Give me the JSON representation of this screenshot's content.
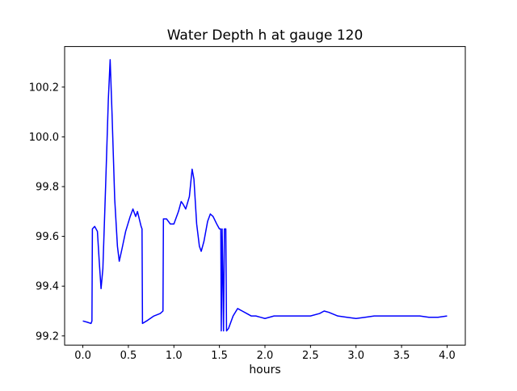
{
  "chart_data": {
    "type": "line",
    "title": "Water Depth h at gauge 120",
    "xlabel": "hours",
    "ylabel": "",
    "grid": false,
    "legend": "none",
    "background_color": "#ffffff",
    "axis_color": "#000000",
    "xlim": [
      -0.2,
      4.2
    ],
    "ylim": [
      99.163,
      100.363
    ],
    "xticks": [
      0.0,
      0.5,
      1.0,
      1.5,
      2.0,
      2.5,
      3.0,
      3.5,
      4.0
    ],
    "xtick_labels": [
      "0.0",
      "0.5",
      "1.0",
      "1.5",
      "2.0",
      "2.5",
      "3.0",
      "3.5",
      "4.0"
    ],
    "yticks": [
      99.2,
      99.4,
      99.6,
      99.8,
      100.0,
      100.2
    ],
    "ytick_labels": [
      "99.2",
      "99.4",
      "99.6",
      "99.8",
      "100.0",
      "100.2"
    ],
    "series": [
      {
        "name": "water-depth-h",
        "color": "#0000ff",
        "line_width": 1.5,
        "x": [
          0.0,
          0.05,
          0.09,
          0.1,
          0.105,
          0.13,
          0.16,
          0.18,
          0.2,
          0.22,
          0.25,
          0.28,
          0.3,
          0.32,
          0.35,
          0.38,
          0.4,
          0.43,
          0.47,
          0.52,
          0.55,
          0.58,
          0.6,
          0.62,
          0.64,
          0.65,
          0.655,
          0.7,
          0.78,
          0.85,
          0.88,
          0.885,
          0.92,
          0.96,
          1.0,
          1.05,
          1.08,
          1.1,
          1.13,
          1.17,
          1.2,
          1.22,
          1.25,
          1.28,
          1.3,
          1.33,
          1.37,
          1.4,
          1.43,
          1.47,
          1.5,
          1.515,
          1.52,
          1.53,
          1.545,
          1.555,
          1.57,
          1.578,
          1.6,
          1.65,
          1.7,
          1.75,
          1.8,
          1.85,
          1.9,
          1.95,
          2.0,
          2.1,
          2.2,
          2.3,
          2.4,
          2.5,
          2.6,
          2.65,
          2.7,
          2.8,
          2.9,
          3.0,
          3.1,
          3.2,
          3.3,
          3.4,
          3.5,
          3.6,
          3.7,
          3.8,
          3.9,
          4.0
        ],
        "y": [
          99.26,
          99.255,
          99.25,
          99.26,
          99.63,
          99.64,
          99.62,
          99.5,
          99.39,
          99.47,
          99.8,
          100.15,
          100.31,
          100.1,
          99.75,
          99.56,
          99.5,
          99.55,
          99.62,
          99.68,
          99.71,
          99.68,
          99.7,
          99.67,
          99.64,
          99.63,
          99.25,
          99.26,
          99.28,
          99.29,
          99.3,
          99.67,
          99.67,
          99.65,
          99.65,
          99.7,
          99.74,
          99.73,
          99.71,
          99.76,
          99.87,
          99.83,
          99.65,
          99.56,
          99.54,
          99.58,
          99.66,
          99.69,
          99.68,
          99.65,
          99.63,
          99.63,
          99.22,
          99.63,
          99.22,
          99.63,
          99.63,
          99.22,
          99.23,
          99.28,
          99.31,
          99.3,
          99.29,
          99.28,
          99.28,
          99.275,
          99.27,
          99.28,
          99.28,
          99.28,
          99.28,
          99.28,
          99.29,
          99.3,
          99.295,
          99.28,
          99.275,
          99.27,
          99.275,
          99.28,
          99.28,
          99.28,
          99.28,
          99.28,
          99.28,
          99.275,
          99.275,
          99.28
        ]
      }
    ]
  }
}
